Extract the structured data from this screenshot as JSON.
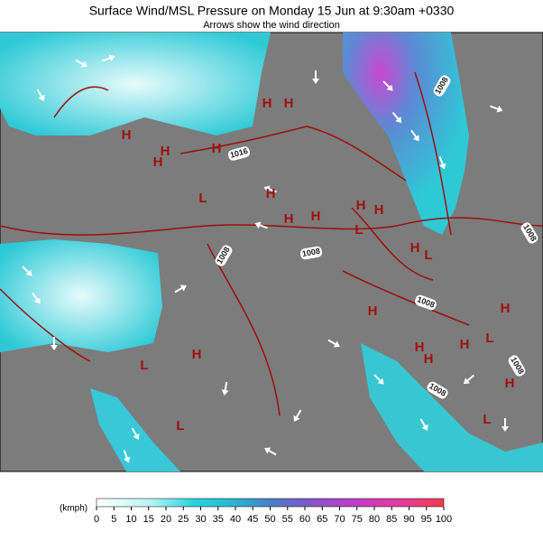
{
  "header": {
    "title": "Surface Wind/MSL Pressure on Monday 15 Jun at 9:30am +0330",
    "subtitle": "Arrows show the wind direction"
  },
  "map": {
    "isobar_labels": [
      "1008",
      "1016",
      "1008",
      "1008",
      "1008",
      "1008",
      "1008",
      "1008"
    ],
    "pressure_markers": [
      "H",
      "H",
      "H",
      "H",
      "H",
      "H",
      "L",
      "H",
      "H",
      "H",
      "H",
      "L",
      "H",
      "H",
      "L",
      "H",
      "H",
      "L",
      "H",
      "H",
      "H",
      "L",
      "H",
      "L",
      "H",
      "L"
    ]
  },
  "legend": {
    "unit": "(kmph)",
    "ticks": [
      "0",
      "5",
      "10",
      "15",
      "20",
      "25",
      "30",
      "35",
      "40",
      "45",
      "50",
      "55",
      "60",
      "65",
      "70",
      "75",
      "80",
      "85",
      "90",
      "95",
      "100"
    ]
  }
}
